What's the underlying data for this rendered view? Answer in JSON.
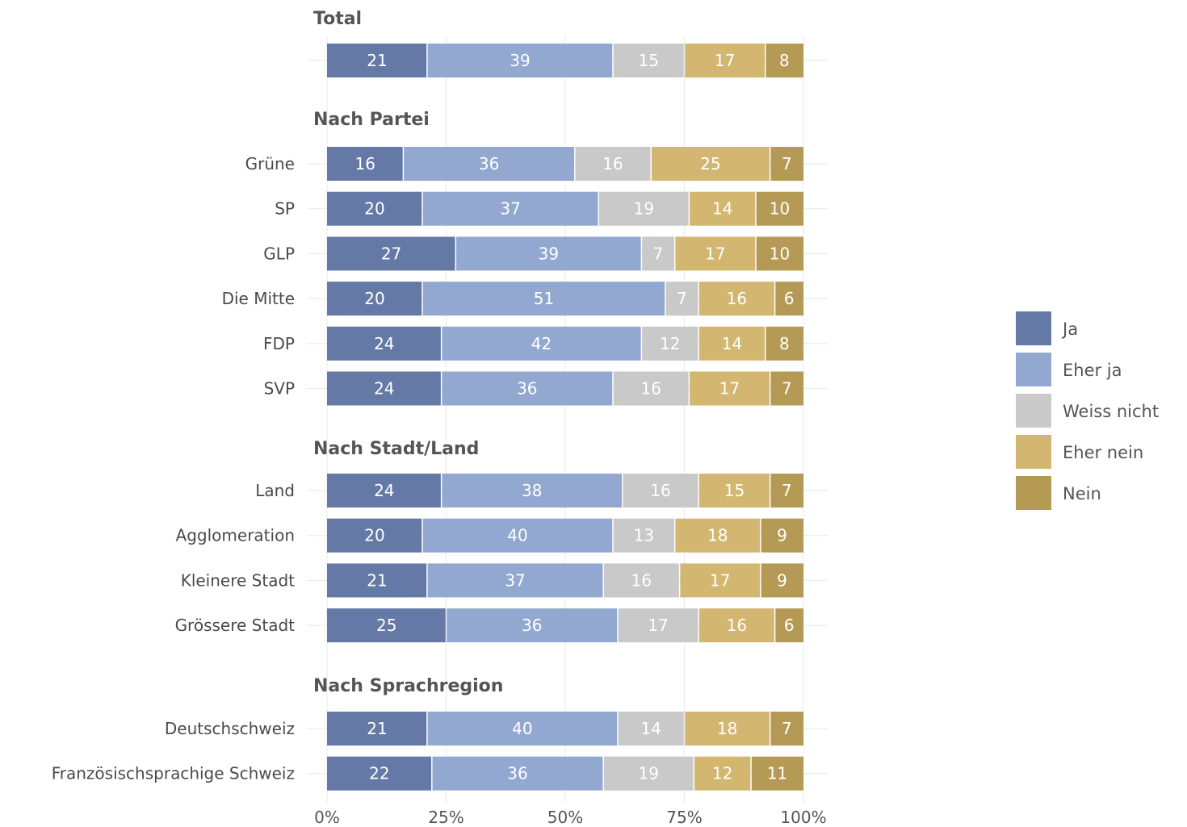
{
  "chart_data": {
    "type": "bar",
    "stacked": true,
    "orientation": "horizontal",
    "xaxis": {
      "ticks": [
        "0%",
        "25%",
        "50%",
        "75%",
        "100%"
      ],
      "xlim": [
        0,
        100
      ]
    },
    "grid": true,
    "legend": {
      "position": "right",
      "items": [
        {
          "label": "Ja",
          "color": "#6479a6"
        },
        {
          "label": "Eher ja",
          "color": "#93a8d0"
        },
        {
          "label": "Weiss nicht",
          "color": "#c9c9c9"
        },
        {
          "label": "Eher nein",
          "color": "#d3b670"
        },
        {
          "label": "Nein",
          "color": "#b59a55"
        }
      ]
    },
    "groups": [
      {
        "title": "Total",
        "rows": [
          {
            "label": "",
            "values": [
              21,
              39,
              15,
              17,
              8
            ]
          }
        ]
      },
      {
        "title": "Nach Partei",
        "rows": [
          {
            "label": "Grüne",
            "values": [
              16,
              36,
              16,
              25,
              7
            ]
          },
          {
            "label": "SP",
            "values": [
              20,
              37,
              19,
              14,
              10
            ]
          },
          {
            "label": "GLP",
            "values": [
              27,
              39,
              7,
              17,
              10
            ]
          },
          {
            "label": "Die Mitte",
            "values": [
              20,
              51,
              7,
              16,
              6
            ]
          },
          {
            "label": "FDP",
            "values": [
              24,
              42,
              12,
              14,
              8
            ]
          },
          {
            "label": "SVP",
            "values": [
              24,
              36,
              16,
              17,
              7
            ]
          }
        ]
      },
      {
        "title": "Nach Stadt/Land",
        "rows": [
          {
            "label": "Land",
            "values": [
              24,
              38,
              16,
              15,
              7
            ]
          },
          {
            "label": "Agglomeration",
            "values": [
              20,
              40,
              13,
              18,
              9
            ]
          },
          {
            "label": "Kleinere Stadt",
            "values": [
              21,
              37,
              16,
              17,
              9
            ]
          },
          {
            "label": "Grössere Stadt",
            "values": [
              25,
              36,
              17,
              16,
              6
            ]
          }
        ]
      },
      {
        "title": "Nach Sprachregion",
        "rows": [
          {
            "label": "Deutschschweiz",
            "values": [
              21,
              40,
              14,
              18,
              7
            ]
          },
          {
            "label": "Französischsprachige Schweiz",
            "values": [
              22,
              36,
              19,
              12,
              11
            ]
          }
        ]
      }
    ]
  }
}
